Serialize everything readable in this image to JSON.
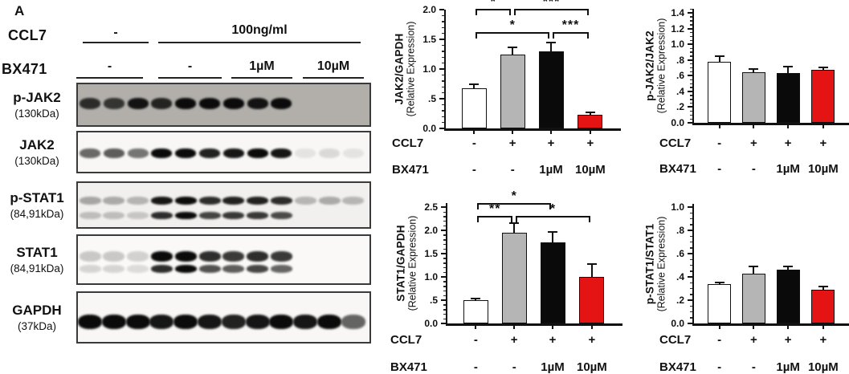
{
  "blot_panel": {
    "panel_label": "A",
    "ccl7_label": "CCL7",
    "bx471_label": "BX471",
    "ccl7_groups": [
      "-",
      "100ng/ml"
    ],
    "bx471_groups": [
      "-",
      "-",
      "1µM",
      "10µM"
    ],
    "lane_count": 12,
    "blots": [
      {
        "label": "p-JAK2",
        "sub": "(130kDa)",
        "bg": "#b2afab",
        "lanes": [
          0.8,
          0.75,
          0.95,
          0.85,
          1,
          1,
          1,
          0.95,
          1,
          0,
          0,
          0
        ]
      },
      {
        "label": "JAK2",
        "sub": "(130kDa)",
        "bg": "#f8f7f5",
        "lanes": [
          0.6,
          0.65,
          0.55,
          1,
          1,
          0.9,
          0.95,
          1,
          0.95,
          0.08,
          0.12,
          0.08
        ]
      },
      {
        "label": "p-STAT1",
        "sub": "(84,91kDa)",
        "bg": "#f1f0ee",
        "lanes": [
          0.32,
          0.3,
          0.26,
          0.95,
          1,
          0.85,
          0.9,
          0.9,
          0.85,
          0.25,
          0.3,
          0.25
        ],
        "lanes2": [
          0.22,
          0.22,
          0.18,
          0.85,
          1,
          0.75,
          0.8,
          0.8,
          0.72,
          0,
          0,
          0
        ]
      },
      {
        "label": "STAT1",
        "sub": "(84,91kDa)",
        "bg": "#faf9f7",
        "lanes": [
          0.2,
          0.2,
          0.16,
          1,
          1,
          0.85,
          0.8,
          0.85,
          0.8,
          0,
          0,
          0
        ],
        "lanes2": [
          0.15,
          0.15,
          0.12,
          0.85,
          1,
          0.7,
          0.65,
          0.75,
          0.62,
          0,
          0,
          0
        ]
      },
      {
        "label": "GAPDH",
        "sub": "(37kDa)",
        "bg": "#f8f7f5",
        "lanes": [
          1,
          1,
          1,
          0.95,
          1,
          0.95,
          0.9,
          0.95,
          1,
          0.95,
          1,
          0.62
        ]
      }
    ]
  },
  "chart_data": [
    {
      "type": "bar",
      "ylabel": "JAK2/GAPDH",
      "ylabel_sub": "(Relative Expression)",
      "ylim": [
        0,
        2.0
      ],
      "ytick_vals": [
        0,
        0.5,
        1.0,
        1.5,
        2.0
      ],
      "ytick_labels": [
        "0.0",
        ".5",
        "1.0",
        "1.5",
        "2.0"
      ],
      "categories": [
        "CCL7- BX471-",
        "CCL7+ BX471-",
        "CCL7+ BX471 1µM",
        "CCL7+ BX471 10µM"
      ],
      "values": [
        0.68,
        1.24,
        1.3,
        0.23
      ],
      "errors": [
        0.07,
        0.13,
        0.15,
        0.04
      ],
      "bar_colors": [
        "#ffffff",
        "#b5b5b5",
        "#0a0a0a",
        "#e41414"
      ],
      "x_rows": [
        {
          "label": "CCL7",
          "cells": [
            "-",
            "+",
            "+",
            "+"
          ]
        },
        {
          "label": "BX471",
          "cells": [
            "-",
            "-",
            "1µM",
            "10µM"
          ]
        }
      ],
      "significance": [
        {
          "from": 0,
          "to": 1,
          "label": "*",
          "row": 0
        },
        {
          "from": 1,
          "to": 3,
          "label": "***",
          "row": 0
        },
        {
          "from": 0,
          "to": 2,
          "label": "*",
          "row": 1
        },
        {
          "from": 2,
          "to": 3,
          "label": "***",
          "row": 1
        }
      ]
    },
    {
      "type": "bar",
      "ylabel": "p-JAK2/JAK2",
      "ylabel_sub": "(Relative Expression)",
      "ylim": [
        0,
        1.4
      ],
      "ytick_vals": [
        0,
        0.2,
        0.4,
        0.6,
        0.8,
        1.0,
        1.2,
        1.4
      ],
      "ytick_labels": [
        "0.0",
        ".2",
        ".4",
        ".6",
        ".8",
        "1.0",
        "1.2",
        "1.4"
      ],
      "categories": [
        "CCL7- BX471-",
        "CCL7+ BX471-",
        "CCL7+ BX471 1µM",
        "CCL7+ BX471 10µM"
      ],
      "values": [
        0.78,
        0.64,
        0.63,
        0.67
      ],
      "errors": [
        0.07,
        0.04,
        0.09,
        0.03
      ],
      "bar_colors": [
        "#ffffff",
        "#b5b5b5",
        "#0a0a0a",
        "#e41414"
      ],
      "x_rows": [
        {
          "label": "CCL7",
          "cells": [
            "-",
            "+",
            "+",
            "+"
          ]
        },
        {
          "label": "BX471",
          "cells": [
            "-",
            "-",
            "1µM",
            "10µM"
          ]
        }
      ],
      "significance": []
    },
    {
      "type": "bar",
      "ylabel": "STAT1/GAPDH",
      "ylabel_sub": "(Relative Expression)",
      "ylim": [
        0,
        2.5
      ],
      "ytick_vals": [
        0,
        0.5,
        1.0,
        1.5,
        2.0,
        2.5
      ],
      "ytick_labels": [
        "0.0",
        ".5",
        "1.0",
        "1.5",
        "2.0",
        "2.5"
      ],
      "categories": [
        "CCL7- BX471-",
        "CCL7+ BX471-",
        "CCL7+ BX471 1µM",
        "CCL7+ BX471 10µM"
      ],
      "values": [
        0.5,
        1.95,
        1.75,
        1.0
      ],
      "errors": [
        0.02,
        0.21,
        0.22,
        0.28
      ],
      "bar_colors": [
        "#ffffff",
        "#b5b5b5",
        "#0a0a0a",
        "#e41414"
      ],
      "x_rows": [
        {
          "label": "CCL7",
          "cells": [
            "-",
            "+",
            "+",
            "+"
          ]
        },
        {
          "label": "BX471",
          "cells": [
            "-",
            "-",
            "1µM",
            "10µM"
          ]
        }
      ],
      "significance": [
        {
          "from": 0,
          "to": 2,
          "label": "*",
          "row": 0
        },
        {
          "from": 0,
          "to": 1,
          "label": "**",
          "row": 1
        },
        {
          "from": 1,
          "to": 3,
          "label": "*",
          "row": 1
        }
      ]
    },
    {
      "type": "bar",
      "ylabel": "p-STAT1/STAT1",
      "ylabel_sub": "(Relative Expression)",
      "ylim": [
        0,
        1.0
      ],
      "ytick_vals": [
        0,
        0.2,
        0.4,
        0.6,
        0.8,
        1.0
      ],
      "ytick_labels": [
        "0.0",
        ".2",
        ".4",
        ".6",
        ".8",
        "1.0"
      ],
      "categories": [
        "CCL7- BX471-",
        "CCL7+ BX471-",
        "CCL7+ BX471 1µM",
        "CCL7+ BX471 10µM"
      ],
      "values": [
        0.34,
        0.43,
        0.46,
        0.29
      ],
      "errors": [
        0.01,
        0.06,
        0.03,
        0.03
      ],
      "bar_colors": [
        "#ffffff",
        "#b5b5b5",
        "#0a0a0a",
        "#e41414"
      ],
      "x_rows": [
        {
          "label": "CCL7",
          "cells": [
            "-",
            "+",
            "+",
            "+"
          ]
        },
        {
          "label": "BX471",
          "cells": [
            "-",
            "-",
            "1µM",
            "10µM"
          ]
        }
      ],
      "significance": []
    }
  ]
}
